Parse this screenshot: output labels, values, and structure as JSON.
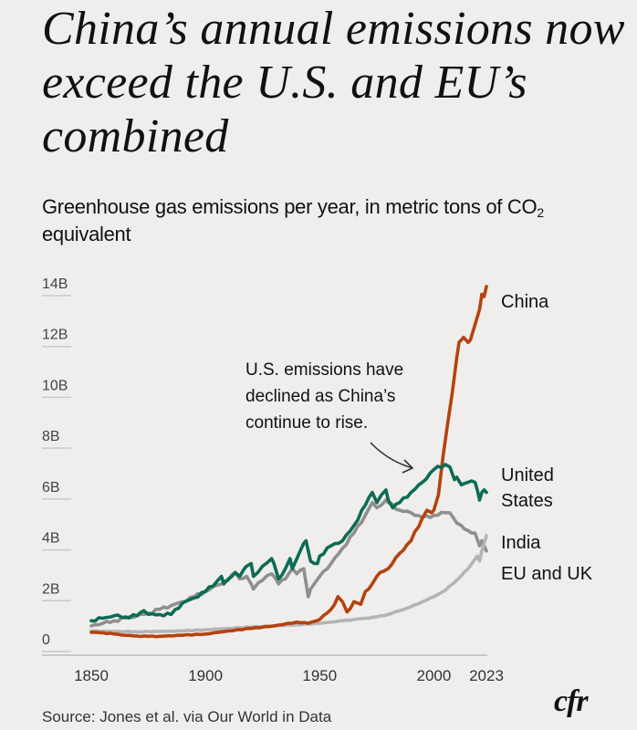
{
  "header": {
    "title": "China’s annual emissions now exceed the U.S. and EU’s combined",
    "subtitle_pre": "Greenhouse gas emissions per year, in metric tons of CO",
    "subtitle_sub": "2",
    "subtitle_post": " equivalent"
  },
  "footer": {
    "source": "Source: Jones et al. via Our World in Data",
    "logo": "cfr"
  },
  "colors": {
    "background": "#efeeec",
    "china": "#b5420f",
    "united_states": "#0d6b55",
    "eu_uk": "#8f8f8f",
    "india": "#b4b4b4",
    "grid": "#c9c9c9"
  },
  "chart_data": {
    "type": "line",
    "title": "China’s annual emissions now exceed the U.S. and EU’s combined",
    "subtitle": "Greenhouse gas emissions per year, in metric tons of CO2 equivalent",
    "xlabel": "",
    "ylabel": "",
    "xlim": [
      1850,
      2023
    ],
    "ylim": [
      0,
      14
    ],
    "y_unit": "billion metric tons CO2e",
    "grid": true,
    "y_ticks": [
      0,
      2,
      4,
      6,
      8,
      10,
      12,
      14
    ],
    "y_tick_labels": [
      "0",
      "2B",
      "4B",
      "6B",
      "8B",
      "10B",
      "12B",
      "14B"
    ],
    "x_ticks": [
      1850,
      1900,
      1950,
      2000,
      2023
    ],
    "x_tick_labels": [
      "1850",
      "1900",
      "1950",
      "2000",
      "2023"
    ],
    "legend": "direct-labels-right",
    "annotation": {
      "text_lines": [
        "U.S. emissions have",
        "declined as China’s",
        "continue to rise."
      ],
      "points_to": {
        "series": "United States",
        "x": 2000
      }
    },
    "series": [
      {
        "name": "EU and UK",
        "label_lines": [
          "EU and UK"
        ],
        "x": [
          1850,
          1855,
          1860,
          1865,
          1870,
          1875,
          1880,
          1885,
          1890,
          1895,
          1900,
          1905,
          1910,
          1913,
          1915,
          1918,
          1920,
          1921,
          1925,
          1929,
          1932,
          1935,
          1938,
          1940,
          1943,
          1945,
          1946,
          1950,
          1955,
          1960,
          1965,
          1970,
          1973,
          1975,
          1979,
          1980,
          1985,
          1990,
          1995,
          2000,
          2005,
          2007,
          2010,
          2012,
          2015,
          2018,
          2020,
          2021,
          2022,
          2023
        ],
        "values": [
          0.65,
          0.75,
          0.85,
          0.95,
          1.05,
          1.15,
          1.3,
          1.45,
          1.6,
          1.8,
          2.0,
          2.25,
          2.45,
          2.75,
          2.5,
          2.6,
          2.3,
          2.1,
          2.45,
          2.7,
          2.3,
          2.5,
          2.9,
          2.7,
          2.9,
          1.8,
          2.1,
          2.6,
          3.1,
          3.7,
          4.3,
          5.0,
          5.5,
          5.3,
          5.6,
          5.5,
          5.2,
          5.1,
          4.9,
          5.0,
          5.1,
          5.1,
          4.7,
          4.6,
          4.4,
          4.3,
          3.8,
          4.0,
          3.8,
          3.6
        ]
      },
      {
        "name": "India",
        "label_lines": [
          "India"
        ],
        "x": [
          1850,
          1860,
          1870,
          1880,
          1890,
          1900,
          1910,
          1920,
          1930,
          1940,
          1950,
          1955,
          1960,
          1965,
          1970,
          1975,
          1980,
          1985,
          1990,
          1995,
          2000,
          2005,
          2010,
          2015,
          2019,
          2020,
          2021,
          2022,
          2023
        ],
        "values": [
          0.45,
          0.43,
          0.42,
          0.43,
          0.45,
          0.5,
          0.55,
          0.6,
          0.65,
          0.7,
          0.75,
          0.8,
          0.85,
          0.9,
          0.95,
          1.0,
          1.1,
          1.25,
          1.4,
          1.6,
          1.8,
          2.05,
          2.45,
          2.9,
          3.4,
          3.2,
          3.6,
          3.9,
          4.2
        ]
      },
      {
        "name": "China",
        "label_lines": [
          "China"
        ],
        "x": [
          1850,
          1855,
          1860,
          1865,
          1870,
          1875,
          1880,
          1890,
          1900,
          1910,
          1920,
          1930,
          1940,
          1945,
          1950,
          1955,
          1958,
          1960,
          1962,
          1965,
          1968,
          1970,
          1973,
          1975,
          1978,
          1980,
          1985,
          1990,
          1995,
          1997,
          1999,
          2000,
          2002,
          2004,
          2006,
          2008,
          2010,
          2011,
          2013,
          2015,
          2016,
          2018,
          2020,
          2021,
          2022,
          2023
        ],
        "values": [
          0.4,
          0.38,
          0.33,
          0.28,
          0.25,
          0.24,
          0.24,
          0.28,
          0.33,
          0.45,
          0.55,
          0.65,
          0.8,
          0.75,
          0.9,
          1.3,
          1.8,
          1.6,
          1.2,
          1.6,
          1.5,
          2.0,
          2.3,
          2.6,
          2.8,
          2.9,
          3.5,
          4.0,
          4.9,
          5.2,
          5.1,
          5.2,
          5.8,
          7.3,
          8.6,
          9.8,
          11.2,
          11.8,
          12.0,
          11.8,
          11.9,
          12.5,
          13.1,
          13.7,
          13.6,
          14.0
        ]
      },
      {
        "name": "United States",
        "label_lines": [
          "United",
          "States"
        ],
        "x": [
          1850,
          1855,
          1860,
          1865,
          1870,
          1873,
          1875,
          1880,
          1885,
          1890,
          1895,
          1900,
          1905,
          1907,
          1908,
          1910,
          1913,
          1915,
          1917,
          1918,
          1920,
          1921,
          1925,
          1929,
          1930,
          1932,
          1935,
          1937,
          1938,
          1940,
          1943,
          1944,
          1945,
          1946,
          1949,
          1950,
          1955,
          1960,
          1965,
          1970,
          1973,
          1975,
          1977,
          1979,
          1980,
          1982,
          1985,
          1990,
          1995,
          2000,
          2005,
          2007,
          2009,
          2010,
          2012,
          2015,
          2018,
          2019,
          2020,
          2021,
          2022,
          2023
        ],
        "values": [
          0.85,
          0.95,
          1.05,
          1.0,
          1.05,
          1.25,
          1.1,
          1.1,
          1.1,
          1.55,
          1.75,
          2.0,
          2.4,
          2.6,
          2.3,
          2.5,
          2.75,
          2.6,
          2.9,
          3.0,
          3.1,
          2.6,
          3.0,
          3.3,
          3.1,
          2.5,
          2.9,
          3.3,
          2.9,
          3.3,
          3.9,
          4.0,
          3.6,
          3.2,
          3.1,
          3.4,
          3.8,
          4.0,
          4.6,
          5.4,
          5.9,
          5.5,
          5.8,
          6.0,
          5.6,
          5.3,
          5.5,
          5.9,
          6.3,
          6.8,
          7.0,
          6.9,
          6.4,
          6.5,
          6.2,
          6.3,
          6.3,
          6.0,
          5.6,
          5.9,
          6.0,
          5.9
        ]
      }
    ]
  }
}
